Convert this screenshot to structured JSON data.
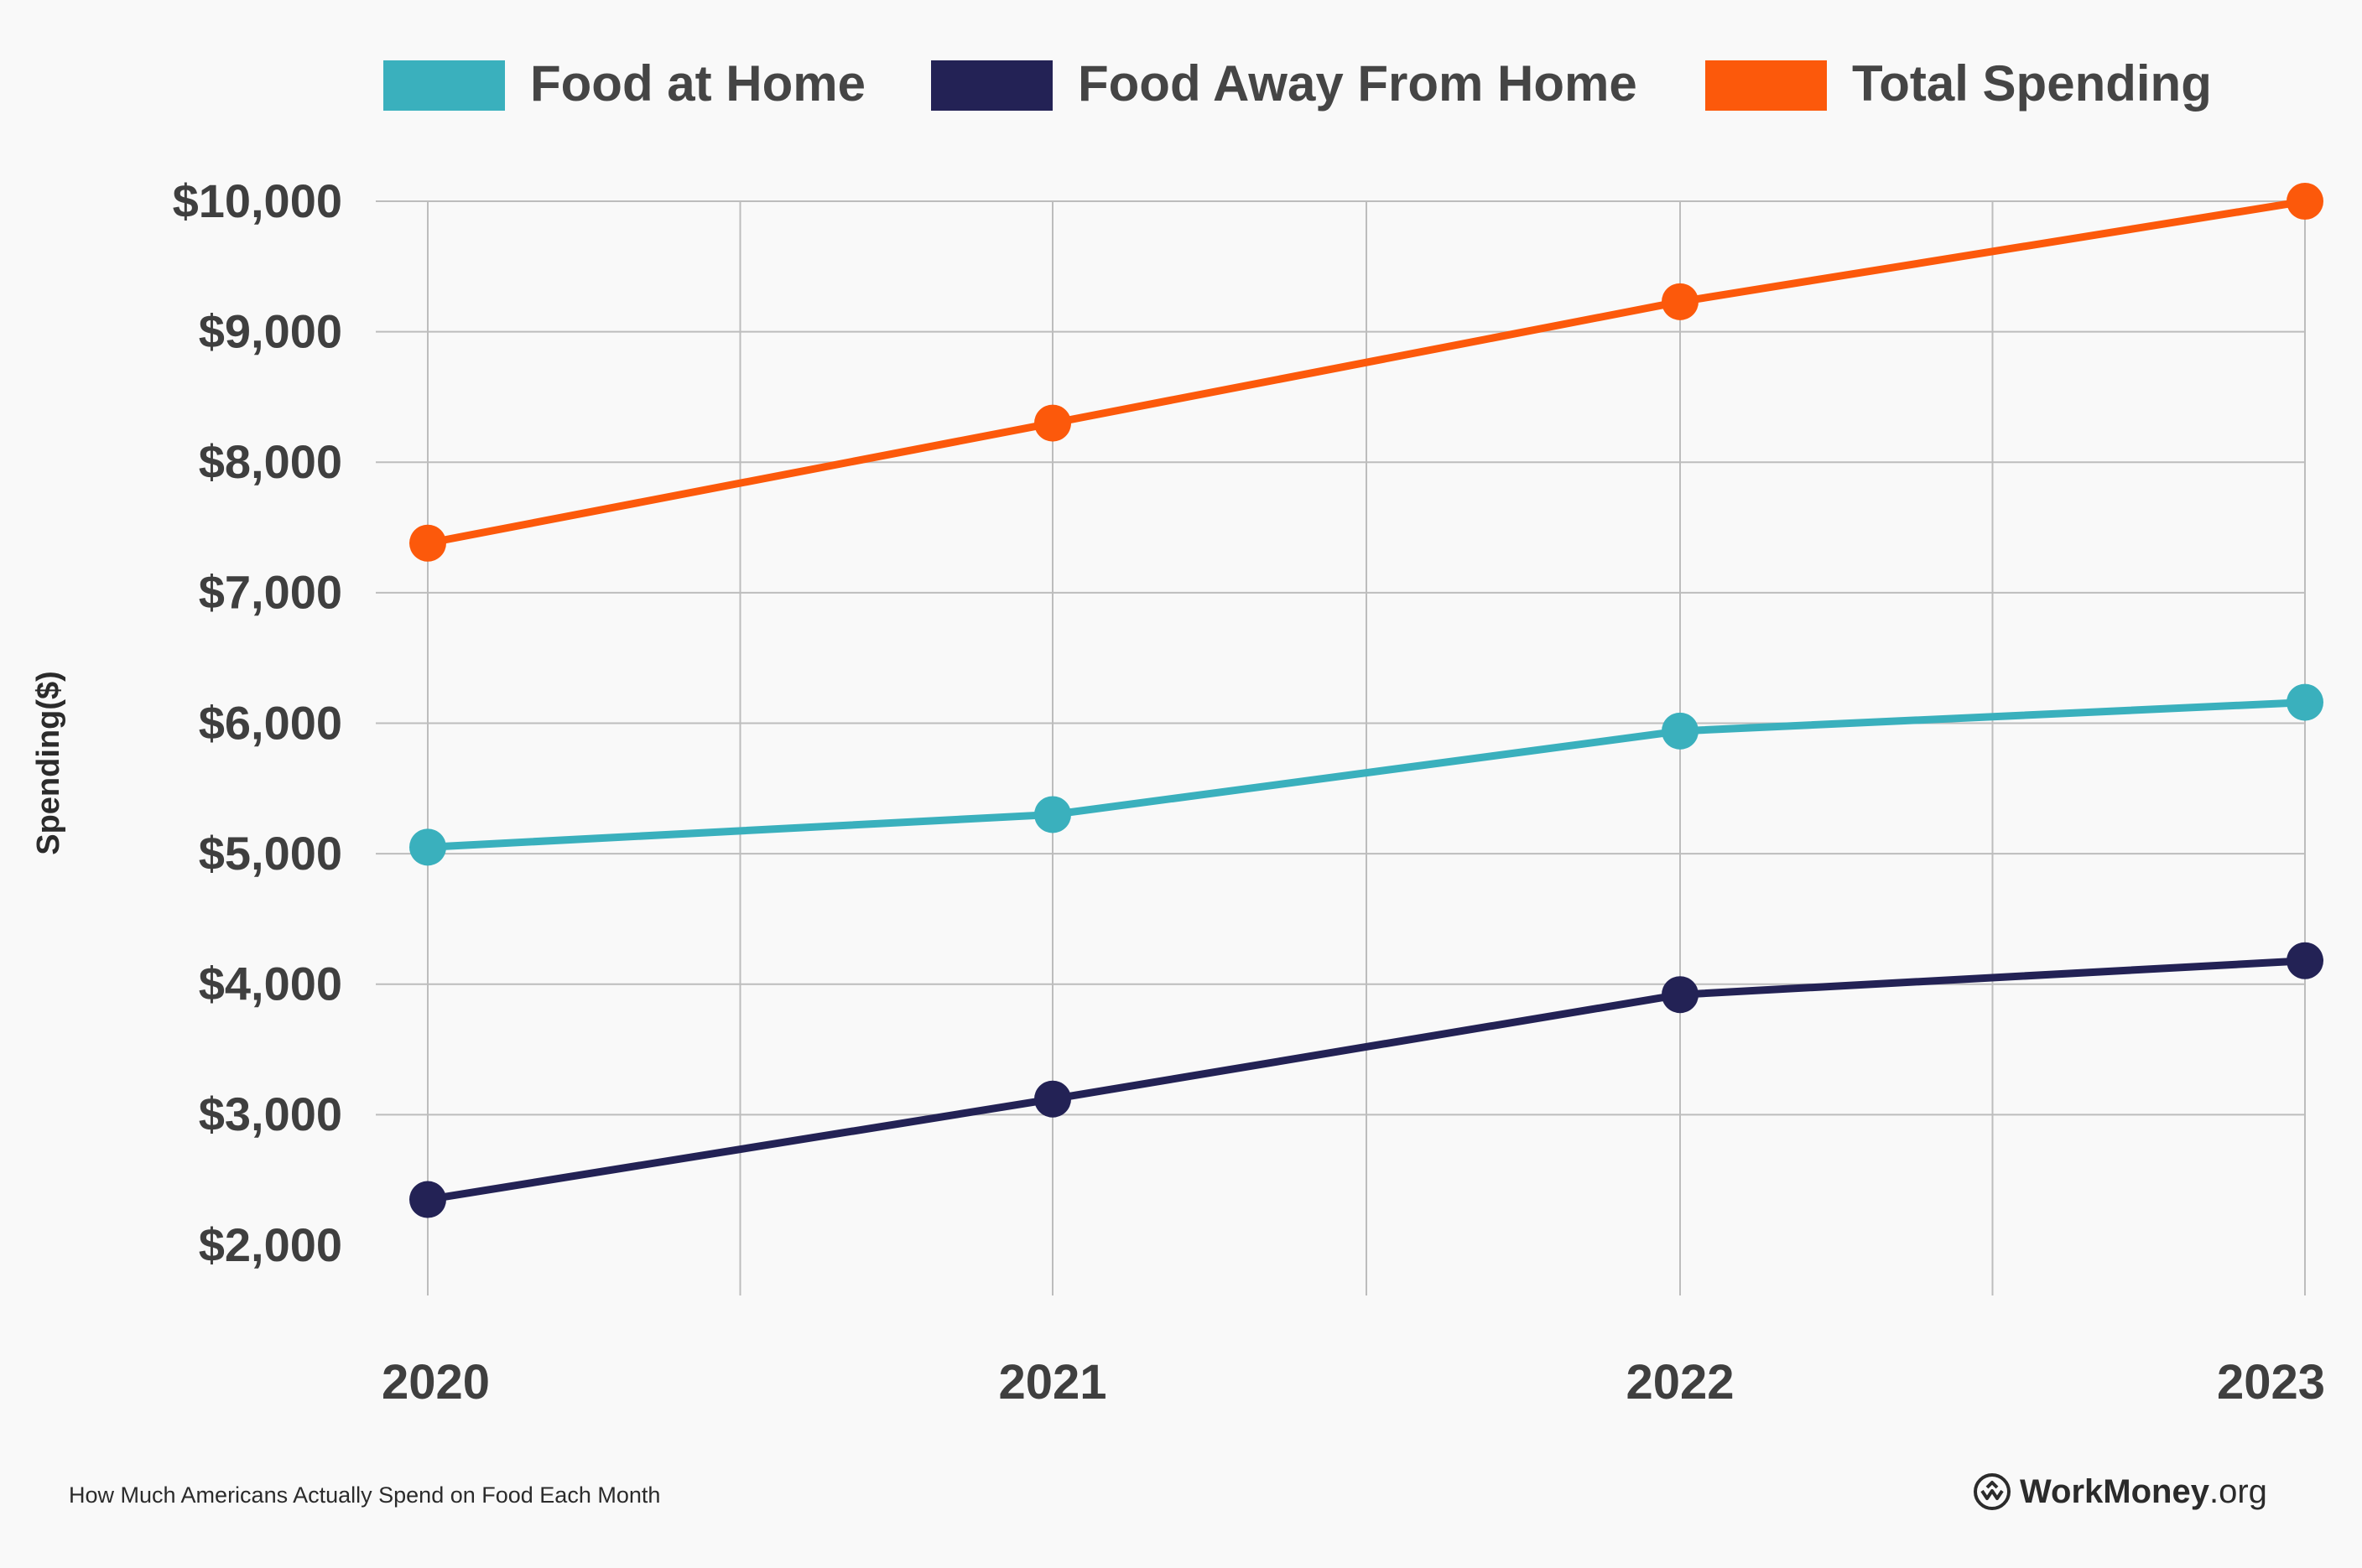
{
  "chart_data": {
    "type": "line",
    "title": "",
    "xlabel": "",
    "ylabel": "Spending($)",
    "categories": [
      "2020",
      "2021",
      "2022",
      "2023"
    ],
    "y_tick_labels": [
      "$2,000",
      "$3,000",
      "$4,000",
      "$5,000",
      "$6,000",
      "$7,000",
      "$8,000",
      "$9,000",
      "$10,000"
    ],
    "ylim": [
      2000,
      10000
    ],
    "grid": true,
    "legend_position": "top-center",
    "series": [
      {
        "name": "Food at Home",
        "color": "#3ab0bd",
        "values": [
          5050,
          5300,
          5940,
          6160
        ]
      },
      {
        "name": "Food Away From Home",
        "color": "#232255",
        "values": [
          2350,
          3120,
          3920,
          4180
        ]
      },
      {
        "name": "Total Spending",
        "color": "#fc590b",
        "values": [
          7380,
          8300,
          9230,
          10000
        ]
      }
    ]
  },
  "footer": {
    "caption": "How Much Americans Actually Spend on Food Each Month",
    "brand_strong": "WorkMoney",
    "brand_light": ".org",
    "brand_icon": "workmoney-logo-icon"
  }
}
